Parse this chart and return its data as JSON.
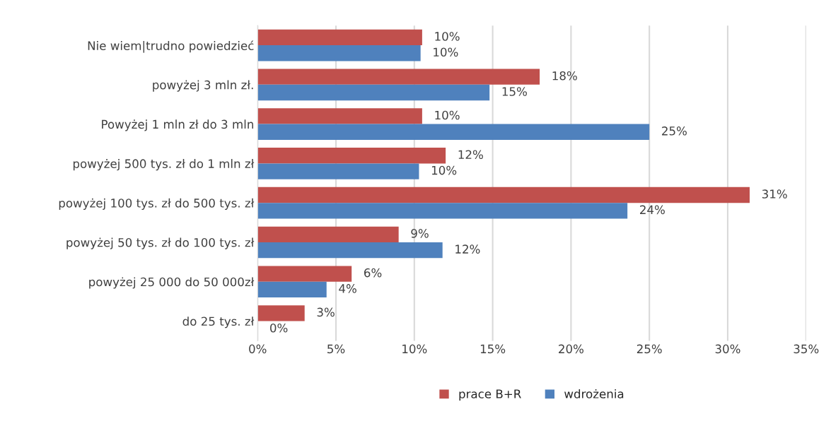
{
  "chart_data": {
    "type": "bar",
    "orientation": "horizontal",
    "categories": [
      "Nie wiem|trudno powiedzieć",
      "powyżej 3 mln zł.",
      "Powyżej 1 mln zł do 3 mln",
      "powyżej 500 tys. zł do 1 mln zł",
      "powyżej 100 tys. zł do 500 tys. zł",
      "powyżej 50 tys. zł do 100 tys. zł",
      "powyżej 25 000 do 50 000zł",
      "do 25 tys. zł"
    ],
    "series": [
      {
        "name": "prace B+R",
        "color": "#c0504d",
        "values": [
          10.5,
          18.0,
          10.5,
          12.0,
          31.4,
          9.0,
          6.0,
          3.0
        ],
        "value_labels": [
          "10%",
          "18%",
          "10%",
          "12%",
          "31%",
          "9%",
          "6%",
          "3%"
        ]
      },
      {
        "name": "wdrożenia",
        "color": "#4f81bd",
        "values": [
          10.4,
          14.8,
          25.0,
          10.3,
          23.6,
          11.8,
          4.4,
          0
        ],
        "value_labels": [
          "10%",
          "15%",
          "25%",
          "10%",
          "24%",
          "12%",
          "4%",
          "0%"
        ]
      }
    ],
    "xlim": [
      0,
      35
    ],
    "xticks": [
      {
        "value": 0,
        "label": "0%"
      },
      {
        "value": 5,
        "label": "5%"
      },
      {
        "value": 10,
        "label": "10%"
      },
      {
        "value": 15,
        "label": "15%"
      },
      {
        "value": 20,
        "label": "20%"
      },
      {
        "value": 25,
        "label": "25%"
      },
      {
        "value": 30,
        "label": "30%"
      },
      {
        "value": 35,
        "label": "35%"
      }
    ],
    "grid": "x",
    "legend": "bottom"
  }
}
